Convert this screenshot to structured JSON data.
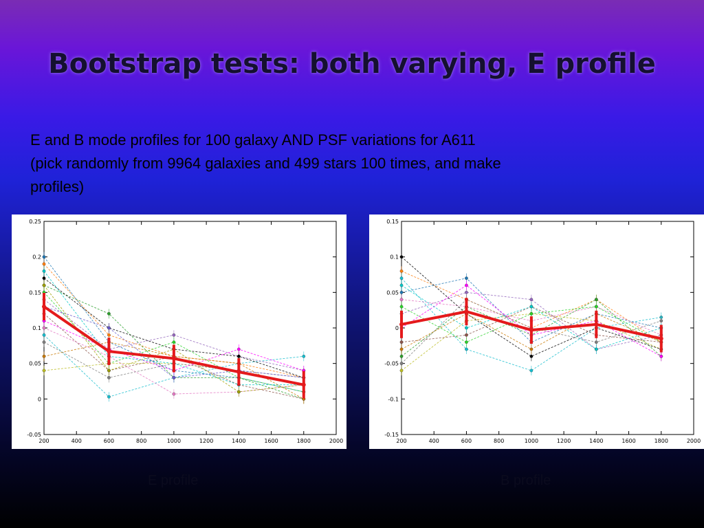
{
  "slide": {
    "title": "Bootstrap tests: both varying, E profile",
    "body_lines": [
      "E and B mode profiles for 100 galaxy AND PSF variations for A611",
      "(pick randomly from 9964 galaxies and 499 stars 100 times, and make",
      "profiles)"
    ]
  },
  "chart_data": [
    {
      "type": "line",
      "caption": "E profile",
      "x": [
        200,
        600,
        1000,
        1400,
        1800
      ],
      "xlim": [
        200,
        2000
      ],
      "ylim": [
        -0.05,
        0.25
      ],
      "xticks": [
        "200",
        "400",
        "600",
        "800",
        "1000",
        "1200",
        "1400",
        "1600",
        "1800",
        "2000"
      ],
      "yticks": [
        "-0.05",
        "0",
        "0.05",
        "0.1",
        "0.15",
        "0.2",
        "0.25"
      ],
      "grid": false,
      "mean_series": {
        "color": "#e41a1c",
        "values": [
          0.13,
          0.067,
          0.057,
          0.038,
          0.02
        ]
      },
      "bootstrap_series": [
        [
          0.19,
          0.09,
          0.06,
          0.05,
          0.03
        ],
        [
          0.16,
          0.12,
          0.03,
          0.03,
          0.0
        ],
        [
          0.09,
          0.003,
          0.03,
          0.05,
          0.06
        ],
        [
          0.14,
          0.07,
          0.09,
          0.06,
          0.04
        ],
        [
          0.04,
          0.05,
          0.05,
          0.04,
          0.02
        ],
        [
          0.2,
          0.08,
          0.04,
          0.03,
          0.01
        ],
        [
          0.12,
          0.04,
          0.06,
          0.02,
          0.0
        ],
        [
          0.1,
          0.06,
          0.007,
          0.01,
          0.02
        ],
        [
          0.17,
          0.1,
          0.07,
          0.06,
          0.03
        ],
        [
          0.08,
          0.03,
          0.05,
          0.04,
          0.03
        ],
        [
          0.15,
          0.05,
          0.08,
          0.03,
          0.01
        ],
        [
          0.11,
          0.07,
          0.04,
          0.07,
          0.04
        ],
        [
          0.18,
          0.06,
          0.05,
          0.02,
          0.02
        ],
        [
          0.06,
          0.08,
          0.06,
          0.05,
          0.0
        ],
        [
          0.13,
          0.1,
          0.03,
          0.04,
          0.03
        ],
        [
          0.16,
          0.04,
          0.07,
          0.01,
          0.02
        ]
      ]
    },
    {
      "type": "line",
      "caption": "B profile",
      "x": [
        200,
        600,
        1000,
        1400,
        1800
      ],
      "xlim": [
        200,
        2000
      ],
      "ylim": [
        -0.15,
        0.15
      ],
      "xticks": [
        "200",
        "400",
        "600",
        "800",
        "1000",
        "1200",
        "1400",
        "1600",
        "1800",
        "2000"
      ],
      "yticks": [
        "-0.15",
        "-0.1",
        "-0.05",
        "0",
        "0.05",
        "0.1",
        "0.15"
      ],
      "grid": false,
      "mean_series": {
        "color": "#e41a1c",
        "values": [
          0.005,
          0.023,
          -0.003,
          0.005,
          -0.015
        ]
      },
      "bootstrap_series": [
        [
          0.08,
          0.04,
          0.0,
          0.04,
          -0.02
        ],
        [
          -0.04,
          0.03,
          -0.01,
          0.04,
          -0.04
        ],
        [
          0.07,
          -0.03,
          -0.06,
          0.0,
          0.015
        ],
        [
          0.02,
          0.05,
          0.04,
          -0.03,
          -0.01
        ],
        [
          -0.06,
          0.01,
          0.02,
          0.01,
          -0.03
        ],
        [
          0.05,
          0.07,
          -0.02,
          0.02,
          0.0
        ],
        [
          -0.02,
          -0.01,
          0.03,
          -0.01,
          -0.02
        ],
        [
          0.04,
          0.03,
          0.01,
          0.03,
          -0.01
        ],
        [
          0.1,
          0.02,
          -0.04,
          0.0,
          -0.03
        ],
        [
          -0.05,
          0.04,
          0.0,
          -0.02,
          0.01
        ],
        [
          0.03,
          -0.02,
          0.02,
          0.03,
          -0.02
        ],
        [
          0.0,
          0.06,
          -0.01,
          0.01,
          -0.04
        ],
        [
          0.06,
          0.0,
          0.03,
          -0.03,
          0.0
        ],
        [
          -0.03,
          0.02,
          -0.03,
          0.02,
          -0.02
        ]
      ]
    }
  ],
  "palette": [
    "#ff7f0e",
    "#2ca02c",
    "#17becf",
    "#9467bd",
    "#bcbd22",
    "#1f77b4",
    "#8c564b",
    "#e377c2",
    "#000000",
    "#7f7f7f",
    "#2bd42b",
    "#ff00ff",
    "#00c8c8",
    "#c87800",
    "#6a5acd",
    "#a0a000"
  ]
}
